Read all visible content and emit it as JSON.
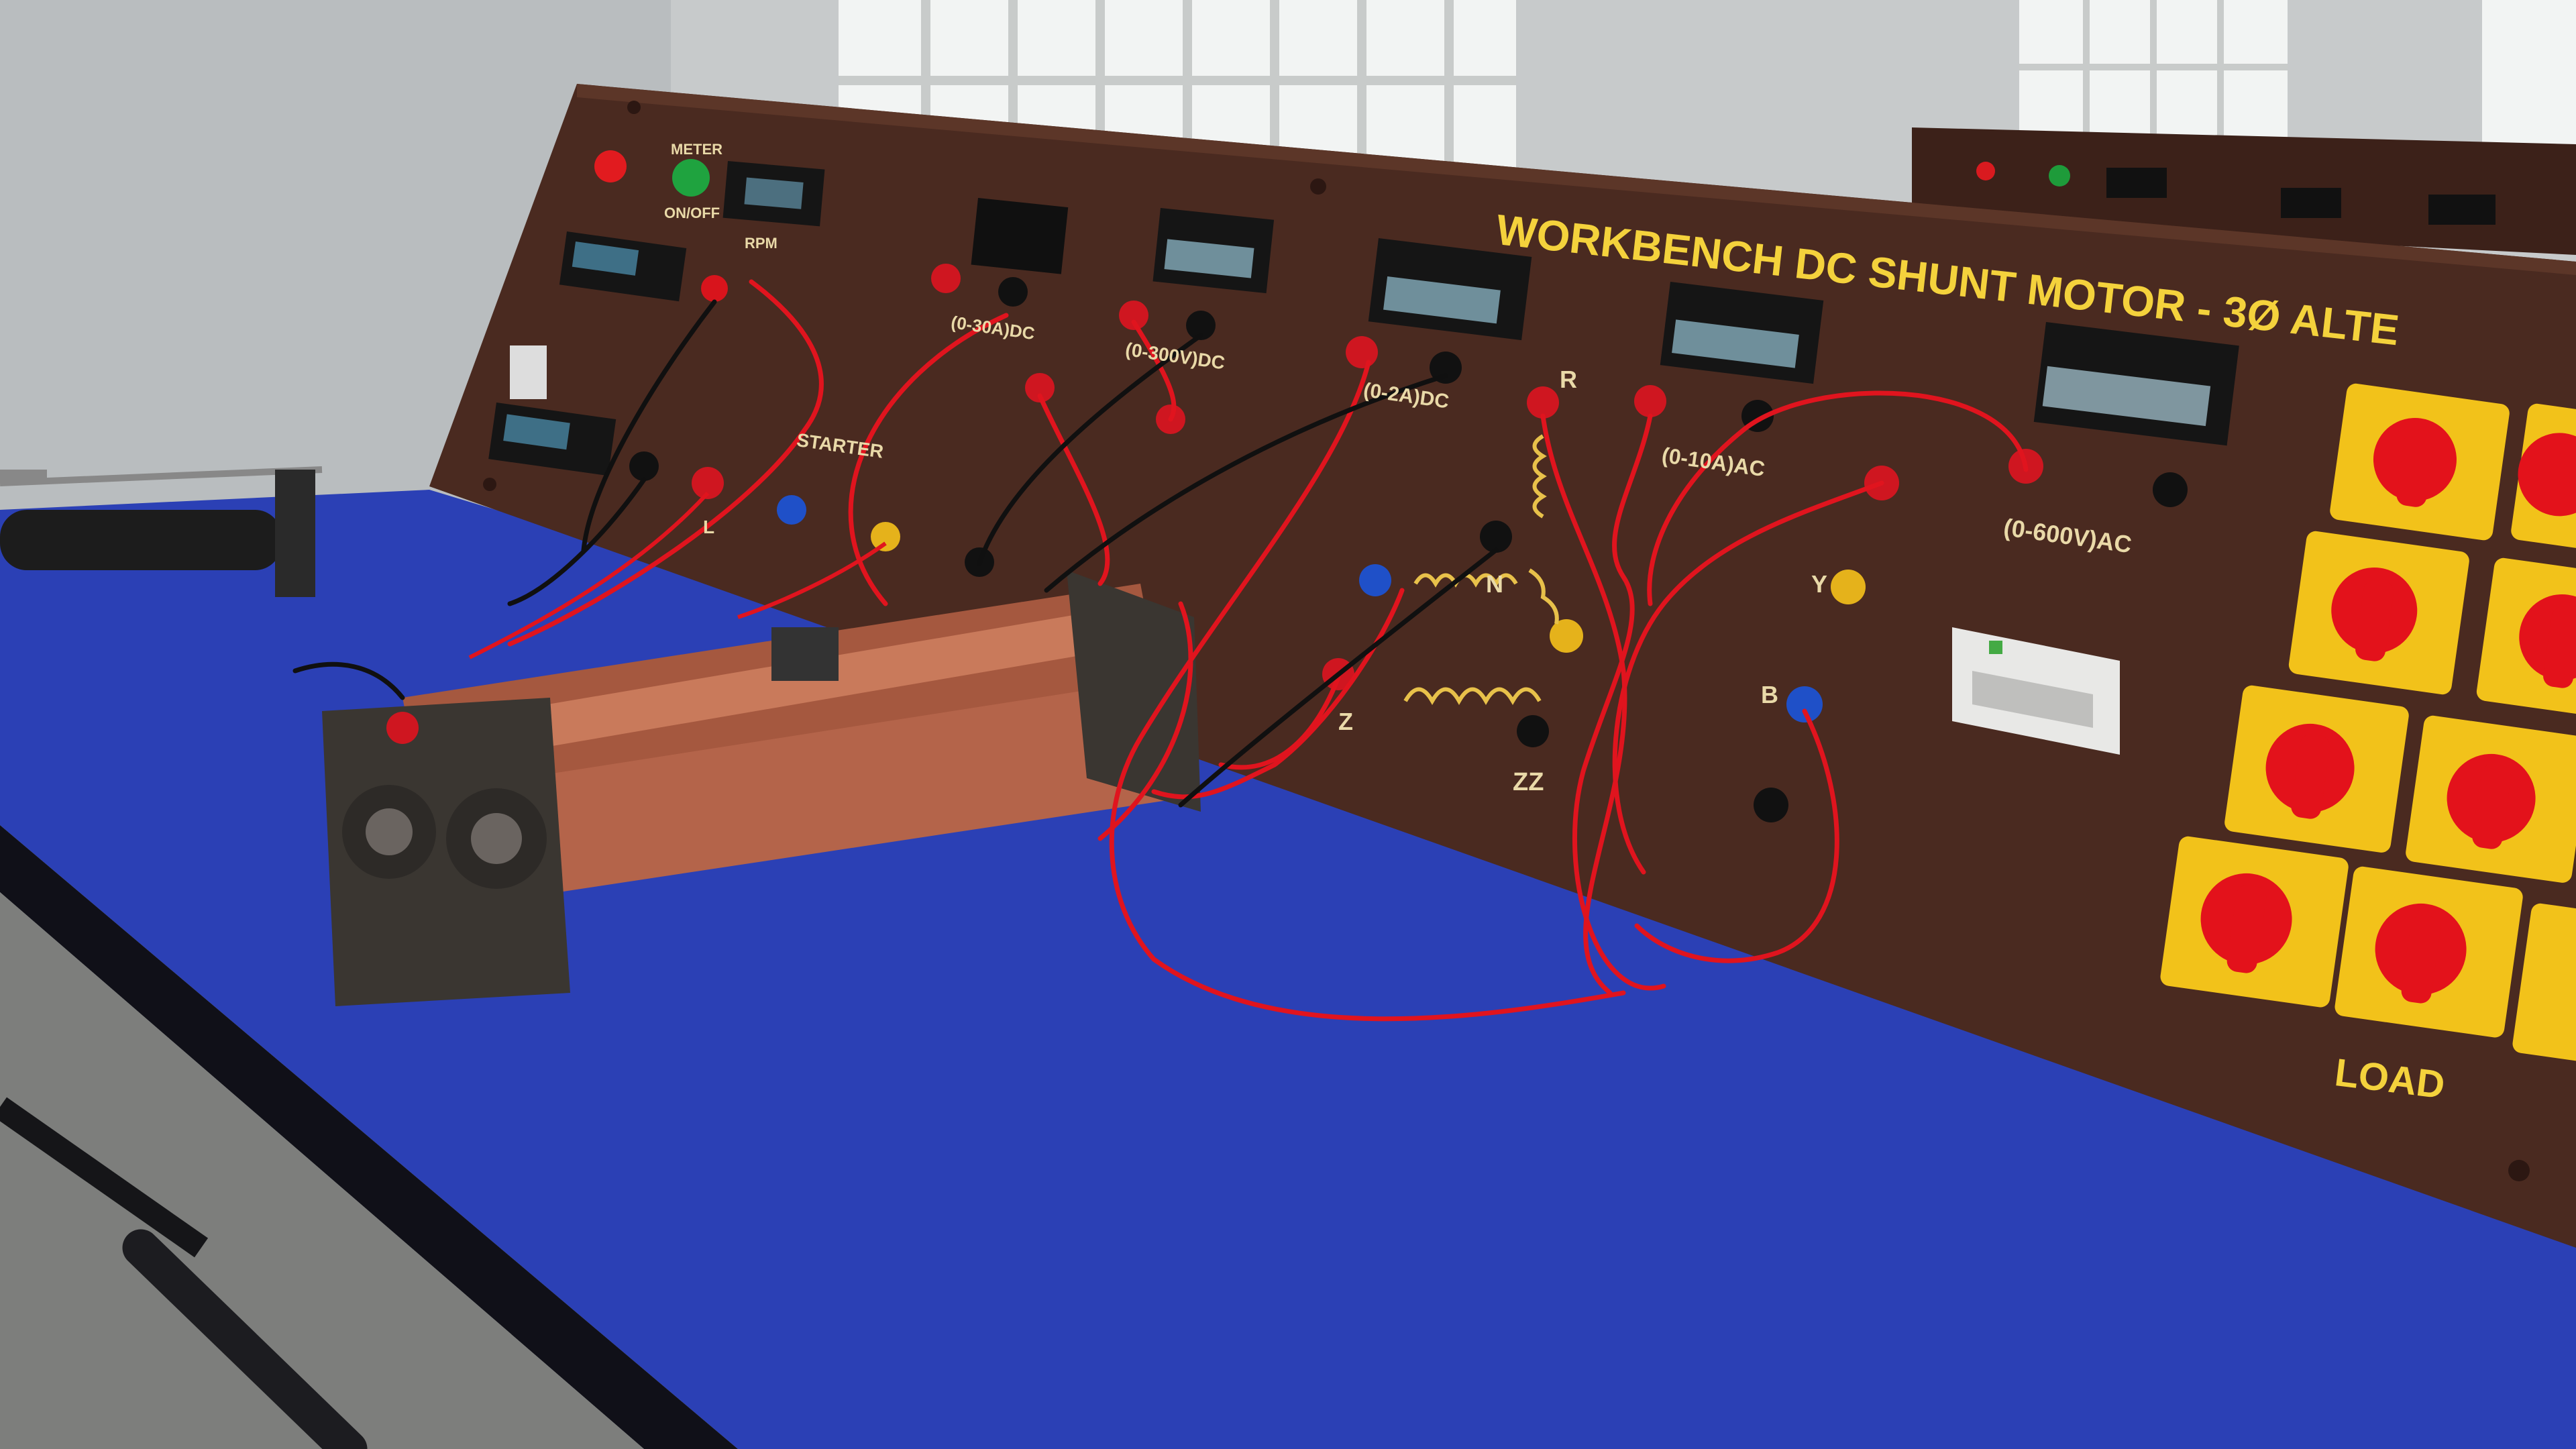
{
  "panel": {
    "title": "WORKBENCH DC SHUNT MOTOR - 3Ø ALTE",
    "load_label": "LOAD",
    "meter_label": "METER",
    "onoff_label": "ON/OFF",
    "rpm_label": "RPM",
    "starter_label": "STARTER",
    "l_label": "L",
    "range_dc_current": "(0-30A)DC",
    "range_dc_voltage": "(0-300V)DC",
    "range_dc_field": "(0-2A)DC",
    "range_ac_current": "(0-10A)AC",
    "range_ac_voltage": "(0-600V)AC",
    "terminal_r": "R",
    "terminal_n": "N",
    "terminal_z": "Z",
    "terminal_zz": "ZZ",
    "terminal_b": "B",
    "terminal_y": "Y"
  },
  "colors": {
    "panel": "#4a2a20",
    "title_yellow": "#f4d23c",
    "table_blue": "#2a3fb8",
    "wire_red": "#e0141e",
    "switch_yellow": "#f2c21a",
    "knob_red": "#e3121b"
  }
}
